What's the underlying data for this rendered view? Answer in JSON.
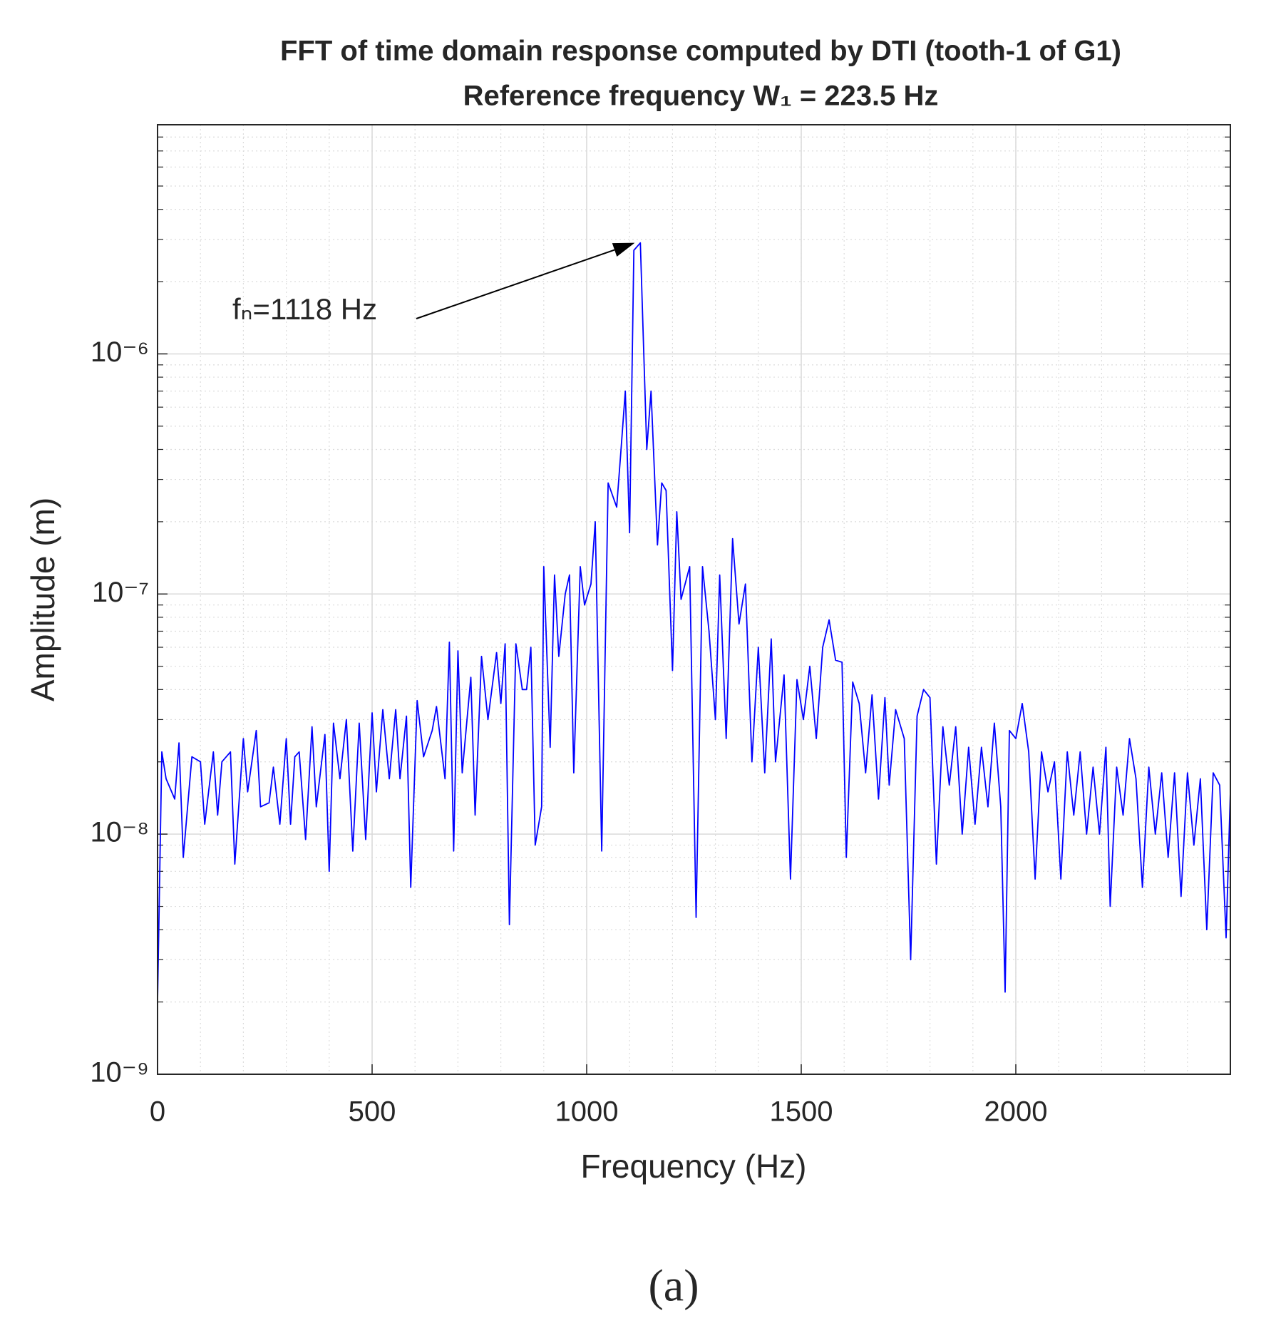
{
  "chart_data": {
    "type": "line",
    "title": "FFT of time domain response computed by DTI (tooth-1 of G1)",
    "subtitle": "Reference frequency W₁ = 223.5 Hz",
    "xlabel": "Frequency (Hz)",
    "ylabel": "Amplitude (m)",
    "caption": "(a)",
    "log_y": true,
    "grid": true,
    "minor_grid": true,
    "xlim": [
      0,
      2500
    ],
    "xticks": [
      0,
      500,
      1000,
      1500,
      2000
    ],
    "ylim": [
      1e-09,
      9e-06
    ],
    "yticks": [
      {
        "value": 1e-09,
        "label": "10⁻⁹"
      },
      {
        "value": 1e-08,
        "label": "10⁻⁸"
      },
      {
        "value": 1e-07,
        "label": "10⁻⁷"
      },
      {
        "value": 1e-06,
        "label": "10⁻⁶"
      }
    ],
    "annotation": {
      "text": "fₙ=1118 Hz",
      "x": 1112,
      "y": 2.9e-06
    },
    "x": [
      0,
      10,
      20,
      40,
      50,
      60,
      80,
      100,
      110,
      130,
      140,
      150,
      170,
      180,
      200,
      210,
      230,
      240,
      260,
      270,
      285,
      300,
      310,
      320,
      330,
      345,
      360,
      370,
      390,
      400,
      410,
      425,
      440,
      455,
      470,
      485,
      500,
      510,
      525,
      540,
      555,
      565,
      580,
      590,
      605,
      620,
      640,
      650,
      670,
      680,
      690,
      700,
      710,
      730,
      740,
      755,
      770,
      790,
      800,
      810,
      820,
      835,
      850,
      860,
      870,
      880,
      895,
      900,
      915,
      925,
      935,
      950,
      960,
      970,
      985,
      995,
      1010,
      1020,
      1035,
      1050,
      1070,
      1080,
      1090,
      1100,
      1110,
      1125,
      1140,
      1150,
      1165,
      1175,
      1185,
      1200,
      1210,
      1220,
      1240,
      1255,
      1270,
      1285,
      1300,
      1310,
      1325,
      1340,
      1355,
      1370,
      1385,
      1400,
      1415,
      1430,
      1440,
      1460,
      1475,
      1490,
      1505,
      1520,
      1535,
      1550,
      1565,
      1580,
      1595,
      1605,
      1620,
      1635,
      1650,
      1665,
      1680,
      1695,
      1705,
      1720,
      1740,
      1755,
      1770,
      1785,
      1800,
      1815,
      1830,
      1845,
      1860,
      1875,
      1890,
      1905,
      1920,
      1935,
      1950,
      1965,
      1975,
      1985,
      2000,
      2015,
      2030,
      2045,
      2060,
      2075,
      2090,
      2105,
      2120,
      2135,
      2150,
      2165,
      2180,
      2195,
      2210,
      2220,
      2235,
      2250,
      2265,
      2280,
      2295,
      2310,
      2325,
      2340,
      2355,
      2370,
      2385,
      2400,
      2415,
      2430,
      2445,
      2460,
      2475,
      2490,
      2500
    ],
    "series": [
      {
        "name": "Amplitude",
        "color": "#0000ff",
        "values": [
          2e-09,
          2.2e-08,
          1.7e-08,
          1.4e-08,
          2.4e-08,
          8e-09,
          2.1e-08,
          2e-08,
          1.1e-08,
          2.2e-08,
          1.2e-08,
          2e-08,
          2.2e-08,
          7.5e-09,
          2.5e-08,
          1.5e-08,
          2.7e-08,
          1.3e-08,
          1.35e-08,
          1.9e-08,
          1.1e-08,
          2.5e-08,
          1.1e-08,
          2.1e-08,
          2.2e-08,
          9.5e-09,
          2.8e-08,
          1.3e-08,
          2.6e-08,
          7e-09,
          2.9e-08,
          1.7e-08,
          3e-08,
          8.5e-09,
          2.9e-08,
          9.5e-09,
          3.2e-08,
          1.5e-08,
          3.3e-08,
          1.7e-08,
          3.3e-08,
          1.7e-08,
          3.1e-08,
          6e-09,
          3.6e-08,
          2.1e-08,
          2.7e-08,
          3.4e-08,
          1.7e-08,
          6.3e-08,
          8.5e-09,
          5.8e-08,
          1.8e-08,
          4.5e-08,
          1.2e-08,
          5.5e-08,
          3e-08,
          5.7e-08,
          3.5e-08,
          6.2e-08,
          4.2e-09,
          6.2e-08,
          4e-08,
          4e-08,
          6e-08,
          9e-09,
          1.3e-08,
          1.3e-07,
          2.3e-08,
          1.2e-07,
          5.5e-08,
          1e-07,
          1.2e-07,
          1.8e-08,
          1.3e-07,
          9e-08,
          1.1e-07,
          2e-07,
          8.5e-09,
          2.9e-07,
          2.3e-07,
          4e-07,
          7e-07,
          1.8e-07,
          2.7e-06,
          2.9e-06,
          4e-07,
          7e-07,
          1.6e-07,
          2.9e-07,
          2.7e-07,
          4.8e-08,
          2.2e-07,
          9.5e-08,
          1.3e-07,
          4.5e-09,
          1.3e-07,
          7e-08,
          3e-08,
          1.2e-07,
          2.5e-08,
          1.7e-07,
          7.5e-08,
          1.1e-07,
          2e-08,
          6e-08,
          1.8e-08,
          6.5e-08,
          2e-08,
          4.6e-08,
          6.5e-09,
          4.4e-08,
          3e-08,
          5e-08,
          2.5e-08,
          6e-08,
          7.8e-08,
          5.3e-08,
          5.2e-08,
          8e-09,
          4.3e-08,
          3.5e-08,
          1.8e-08,
          3.8e-08,
          1.4e-08,
          3.7e-08,
          1.6e-08,
          3.3e-08,
          2.5e-08,
          3e-09,
          3.1e-08,
          4e-08,
          3.7e-08,
          7.5e-09,
          2.8e-08,
          1.6e-08,
          2.8e-08,
          1e-08,
          2.3e-08,
          1.1e-08,
          2.3e-08,
          1.3e-08,
          2.9e-08,
          1.3e-08,
          2.2e-09,
          2.7e-08,
          2.5e-08,
          3.5e-08,
          2.2e-08,
          6.5e-09,
          2.2e-08,
          1.5e-08,
          2e-08,
          6.5e-09,
          2.2e-08,
          1.2e-08,
          2.2e-08,
          1e-08,
          1.9e-08,
          1e-08,
          2.3e-08,
          5e-09,
          1.9e-08,
          1.2e-08,
          2.5e-08,
          1.7e-08,
          6e-09,
          1.9e-08,
          1e-08,
          1.8e-08,
          8e-09,
          1.8e-08,
          5.5e-09,
          1.8e-08,
          9e-09,
          1.7e-08,
          4e-09,
          1.8e-08,
          1.6e-08,
          3.7e-09,
          1.5e-08
        ]
      }
    ]
  }
}
